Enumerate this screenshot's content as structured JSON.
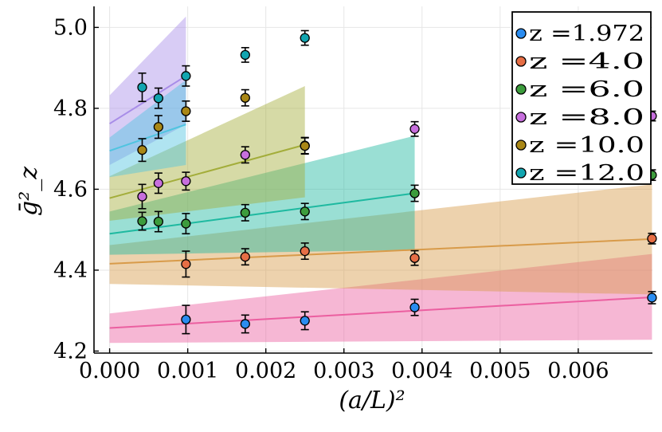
{
  "chart_data": {
    "type": "scatter",
    "title": "",
    "xlabel": "(a/L)²",
    "ylabel": "ḡ²_z",
    "xlim": [
      -0.0002,
      0.00695
    ],
    "ylim": [
      4.195,
      5.052
    ],
    "x_ticks": [
      0.0,
      0.001,
      0.002,
      0.003,
      0.004,
      0.005,
      0.006
    ],
    "x_tick_labels": [
      "0.000",
      "0.001",
      "0.002",
      "0.003",
      "0.004",
      "0.005",
      "0.006"
    ],
    "y_ticks": [
      4.2,
      4.4,
      4.6,
      4.8,
      5.0
    ],
    "y_tick_labels": [
      "4.2",
      "4.4",
      "4.6",
      "4.8",
      "5.0"
    ],
    "grid": true,
    "legend_position": "top-right",
    "series": [
      {
        "name": "z =1.972",
        "color": "#2a8cf0",
        "band_color": "#eb5fa0",
        "points": [
          {
            "x": 0.000977,
            "y": 4.278,
            "err": 0.035
          },
          {
            "x": 0.001736,
            "y": 4.267,
            "err": 0.022
          },
          {
            "x": 0.0025,
            "y": 4.275,
            "err": 0.022
          },
          {
            "x": 0.003906,
            "y": 4.308,
            "err": 0.02
          },
          {
            "x": 0.006944,
            "y": 4.332,
            "err": 0.015
          }
        ],
        "fit": {
          "x0": 0.0,
          "x1": 0.006944,
          "y0": 4.257,
          "y1": 4.333
        },
        "band": {
          "x0": 0.0,
          "x1": 0.006944,
          "upper0": 4.293,
          "lower0": 4.22,
          "upper1": 4.44,
          "lower1": 4.228
        }
      },
      {
        "name": "z =4.0",
        "color": "#e66e45",
        "band_color": "#d89b4a",
        "points": [
          {
            "x": 0.000977,
            "y": 4.415,
            "err": 0.032
          },
          {
            "x": 0.001736,
            "y": 4.433,
            "err": 0.02
          },
          {
            "x": 0.0025,
            "y": 4.447,
            "err": 0.02
          },
          {
            "x": 0.003906,
            "y": 4.43,
            "err": 0.018
          },
          {
            "x": 0.006944,
            "y": 4.478,
            "err": 0.013
          }
        ],
        "fit": {
          "x0": 0.0,
          "x1": 0.006944,
          "y0": 4.416,
          "y1": 4.477
        },
        "band": {
          "x0": 0.0,
          "x1": 0.006944,
          "upper0": 4.462,
          "lower0": 4.366,
          "upper1": 4.612,
          "lower1": 4.34
        }
      },
      {
        "name": "z =6.0",
        "color": "#3c9c3c",
        "band_color": "#1eb9a0",
        "points": [
          {
            "x": 0.000417,
            "y": 4.521,
            "err": 0.022
          },
          {
            "x": 0.000625,
            "y": 4.52,
            "err": 0.025
          },
          {
            "x": 0.000977,
            "y": 4.515,
            "err": 0.025
          },
          {
            "x": 0.001736,
            "y": 4.542,
            "err": 0.02
          },
          {
            "x": 0.0025,
            "y": 4.545,
            "err": 0.02
          },
          {
            "x": 0.003906,
            "y": 4.59,
            "err": 0.02
          },
          {
            "x": 0.006944,
            "y": 4.635,
            "err": 0.013
          }
        ],
        "fit": {
          "x0": 0.0,
          "x1": 0.003906,
          "y0": 4.49,
          "y1": 4.59
        },
        "band": {
          "x0": 0.0,
          "x1": 0.003906,
          "upper0": 4.545,
          "lower0": 4.438,
          "upper1": 4.732,
          "lower1": 4.45
        }
      },
      {
        "name": "z =8.0",
        "color": "#c76fdd",
        "band_color": "#a88de8",
        "points": [
          {
            "x": 0.000417,
            "y": 4.582,
            "err": 0.03
          },
          {
            "x": 0.000625,
            "y": 4.615,
            "err": 0.025
          },
          {
            "x": 0.000977,
            "y": 4.62,
            "err": 0.022
          },
          {
            "x": 0.001736,
            "y": 4.685,
            "err": 0.02
          },
          {
            "x": 0.0025,
            "y": 4.708,
            "err": 0.02
          },
          {
            "x": 0.003906,
            "y": 4.749,
            "err": 0.018
          },
          {
            "x": 0.006944,
            "y": 4.781,
            "err": 0.012
          }
        ],
        "fit": {
          "x0": 0.0,
          "x1": 0.000977,
          "y0": 4.762,
          "y1": 4.88
        },
        "band": {
          "x0": 0.0,
          "x1": 0.000977,
          "upper0": 4.832,
          "lower0": 4.66,
          "upper1": 5.027,
          "lower1": 4.76
        }
      },
      {
        "name": "z =10.0",
        "color": "#a98716",
        "band_color": "#a3ad3a",
        "points": [
          {
            "x": 0.000417,
            "y": 4.697,
            "err": 0.028
          },
          {
            "x": 0.000625,
            "y": 4.754,
            "err": 0.028
          },
          {
            "x": 0.000977,
            "y": 4.793,
            "err": 0.025
          },
          {
            "x": 0.001736,
            "y": 4.826,
            "err": 0.02
          },
          {
            "x": 0.0025,
            "y": 4.707,
            "err": 0.02
          }
        ],
        "fit": {
          "x0": 0.0,
          "x1": 0.0025,
          "y0": 4.578,
          "y1": 4.71
        },
        "band": {
          "x0": 0.0,
          "x1": 0.0025,
          "upper0": 4.632,
          "lower0": 4.522,
          "upper1": 4.855,
          "lower1": 4.58
        }
      },
      {
        "name": "z =12.0",
        "color": "#12a5b0",
        "band_color": "#4fc4e0",
        "points": [
          {
            "x": 0.000417,
            "y": 4.852,
            "err": 0.035
          },
          {
            "x": 0.000625,
            "y": 4.825,
            "err": 0.025
          },
          {
            "x": 0.000977,
            "y": 4.88,
            "err": 0.025
          },
          {
            "x": 0.001736,
            "y": 4.932,
            "err": 0.018
          },
          {
            "x": 0.0025,
            "y": 4.974,
            "err": 0.018
          }
        ],
        "fit": {
          "x0": 0.0,
          "x1": 0.000977,
          "y0": 4.695,
          "y1": 4.76
        },
        "band": {
          "x0": 0.0,
          "x1": 0.000977,
          "upper0": 4.728,
          "lower0": 4.63,
          "upper1": 4.87,
          "lower1": 4.66
        }
      }
    ]
  }
}
